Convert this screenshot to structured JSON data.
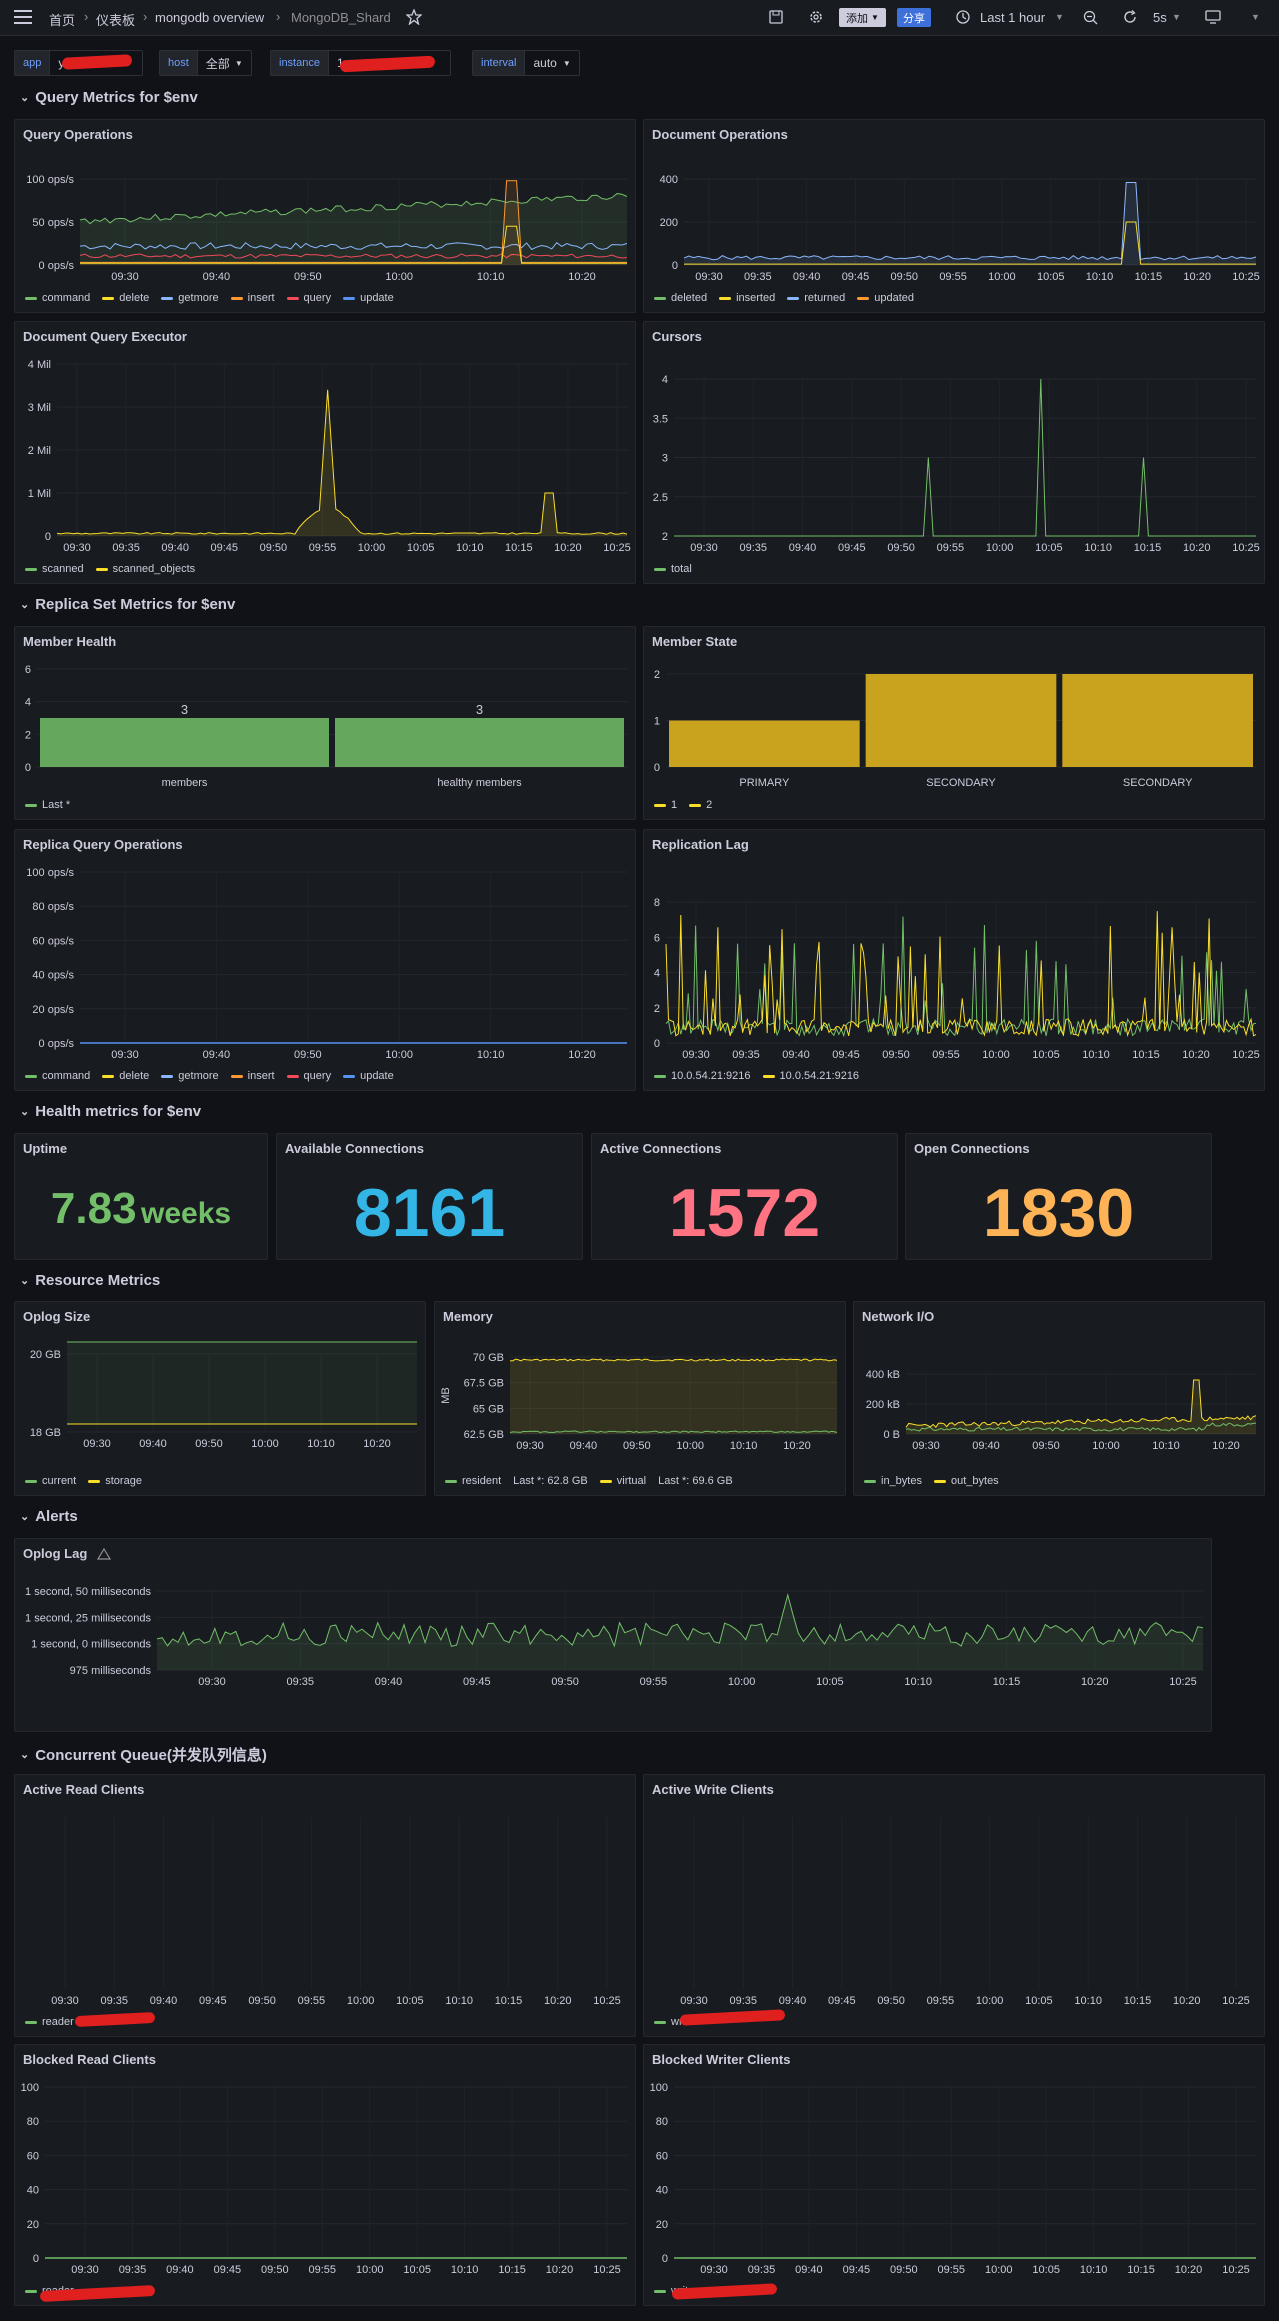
{
  "topbar": {
    "breadcrumbs": [
      "首页",
      "仪表板",
      "mongodb overview",
      "MongoDB_Shard"
    ],
    "add": "添加",
    "share": "分享",
    "time_range": "Last 1 hour",
    "refresh": "5s"
  },
  "variables": [
    {
      "label": "app",
      "value": "y"
    },
    {
      "label": "host",
      "value": "全部"
    },
    {
      "label": "instance",
      "value": "1                16"
    },
    {
      "label": "interval",
      "value": "auto"
    }
  ],
  "rows": {
    "query": "Query Metrics for $env",
    "replica": "Replica Set Metrics for $env",
    "health": "Health metrics for $env",
    "resource": "Resource Metrics",
    "alerts": "Alerts",
    "queue": "Concurrent Queue(并发队列信息)"
  },
  "panels": {
    "query_ops": {
      "title": "Query Operations",
      "yticks": [
        "100 ops/s",
        "50 ops/s",
        "0 ops/s"
      ],
      "xticks": [
        "09:30",
        "09:40",
        "09:50",
        "10:00",
        "10:10",
        "10:20"
      ],
      "legend": [
        "command",
        "delete",
        "getmore",
        "insert",
        "query",
        "update"
      ]
    },
    "doc_ops": {
      "title": "Document Operations",
      "yticks": [
        "400",
        "200",
        "0"
      ],
      "xticks": [
        "09:30",
        "09:35",
        "09:40",
        "09:45",
        "09:50",
        "09:55",
        "10:00",
        "10:05",
        "10:10",
        "10:15",
        "10:20",
        "10:25"
      ],
      "legend": [
        "deleted",
        "inserted",
        "returned",
        "updated"
      ]
    },
    "doc_exec": {
      "title": "Document Query Executor",
      "yticks": [
        "4 Mil",
        "3 Mil",
        "2 Mil",
        "1 Mil",
        "0"
      ],
      "xticks": [
        "09:30",
        "09:35",
        "09:40",
        "09:45",
        "09:50",
        "09:55",
        "10:00",
        "10:05",
        "10:10",
        "10:15",
        "10:20",
        "10:25"
      ],
      "legend": [
        "scanned",
        "scanned_objects"
      ]
    },
    "cursors": {
      "title": "Cursors",
      "yticks": [
        "4",
        "3.5",
        "3",
        "2.5",
        "2"
      ],
      "xticks": [
        "09:30",
        "09:35",
        "09:40",
        "09:45",
        "09:50",
        "09:55",
        "10:00",
        "10:05",
        "10:10",
        "10:15",
        "10:20",
        "10:25"
      ],
      "legend": [
        "total"
      ]
    },
    "member_health": {
      "title": "Member Health",
      "yticks": [
        "6",
        "4",
        "2",
        "0"
      ],
      "legend": [
        "Last *"
      ]
    },
    "member_state": {
      "title": "Member State",
      "yticks": [
        "2",
        "1",
        "0"
      ],
      "legend": [
        "1",
        "2"
      ]
    },
    "replica_ops": {
      "title": "Replica Query Operations",
      "yticks": [
        "100 ops/s",
        "80 ops/s",
        "60 ops/s",
        "40 ops/s",
        "20 ops/s",
        "0 ops/s"
      ],
      "xticks": [
        "09:30",
        "09:40",
        "09:50",
        "10:00",
        "10:10",
        "10:20"
      ],
      "legend": [
        "command",
        "delete",
        "getmore",
        "insert",
        "query",
        "update"
      ]
    },
    "repl_lag": {
      "title": "Replication Lag",
      "yticks": [
        "8",
        "6",
        "4",
        "2",
        "0"
      ],
      "xticks": [
        "09:30",
        "09:35",
        "09:40",
        "09:45",
        "09:50",
        "09:55",
        "10:00",
        "10:05",
        "10:10",
        "10:15",
        "10:20",
        "10:25"
      ],
      "legend": [
        "10.0.54.21:9216",
        "10.0.54.21:9216"
      ]
    },
    "uptime": {
      "title": "Uptime",
      "value": "7.83",
      "unit": "weeks"
    },
    "avail_conn": {
      "title": "Available Connections",
      "value": "8161"
    },
    "active_conn": {
      "title": "Active Connections",
      "value": "1572"
    },
    "open_conn": {
      "title": "Open Connections",
      "value": "1830"
    },
    "oplog_size": {
      "title": "Oplog Size",
      "yticks": [
        "20 GB",
        "18 GB"
      ],
      "xticks": [
        "09:30",
        "09:40",
        "09:50",
        "10:00",
        "10:10",
        "10:20"
      ],
      "legend": [
        "current",
        "storage"
      ]
    },
    "memory": {
      "title": "Memory",
      "ylabel": "MB",
      "yticks": [
        "70 GB",
        "67.5 GB",
        "65 GB",
        "62.5 GB"
      ],
      "xticks": [
        "09:30",
        "09:40",
        "09:50",
        "10:00",
        "10:10",
        "10:20"
      ],
      "legend": [
        "resident",
        "Last *: 62.8 GB",
        "virtual",
        "Last *: 69.6 GB"
      ]
    },
    "network": {
      "title": "Network I/O",
      "yticks": [
        "400 kB",
        "200 kB",
        "0 B"
      ],
      "xticks": [
        "09:30",
        "09:40",
        "09:50",
        "10:00",
        "10:10",
        "10:20"
      ],
      "legend": [
        "in_bytes",
        "out_bytes"
      ]
    },
    "oplog_lag": {
      "title": "Oplog Lag",
      "yticks": [
        "1 second, 50 milliseconds",
        "1 second, 25 milliseconds",
        "1 second, 0 milliseconds",
        "975 milliseconds"
      ],
      "xticks": [
        "09:30",
        "09:35",
        "09:40",
        "09:45",
        "09:50",
        "09:55",
        "10:00",
        "10:05",
        "10:10",
        "10:15",
        "10:20",
        "10:25"
      ]
    },
    "active_read": {
      "title": "Active Read Clients",
      "xticks": [
        "09:30",
        "09:35",
        "09:40",
        "09:45",
        "09:50",
        "09:55",
        "10:00",
        "10:05",
        "10:10",
        "10:15",
        "10:20",
        "10:25"
      ],
      "legend": [
        "reader"
      ]
    },
    "active_write": {
      "title": "Active Write Clients",
      "xticks": [
        "09:30",
        "09:35",
        "09:40",
        "09:45",
        "09:50",
        "09:55",
        "10:00",
        "10:05",
        "10:10",
        "10:15",
        "10:20",
        "10:25"
      ],
      "legend": [
        "writer"
      ]
    },
    "blocked_read": {
      "title": "Blocked Read Clients",
      "yticks": [
        "100",
        "80",
        "60",
        "40",
        "20",
        "0"
      ],
      "xticks": [
        "09:30",
        "09:35",
        "09:40",
        "09:45",
        "09:50",
        "09:55",
        "10:00",
        "10:05",
        "10:10",
        "10:15",
        "10:20",
        "10:25"
      ],
      "legend": [
        "reader"
      ]
    },
    "blocked_write": {
      "title": "Blocked Writer Clients",
      "yticks": [
        "100",
        "80",
        "60",
        "40",
        "20",
        "0"
      ],
      "xticks": [
        "09:30",
        "09:35",
        "09:40",
        "09:45",
        "09:50",
        "09:55",
        "10:00",
        "10:05",
        "10:10",
        "10:15",
        "10:20",
        "10:25"
      ],
      "legend": [
        "writer"
      ]
    }
  },
  "chart_data": [
    {
      "type": "bar",
      "title": "Member Health",
      "categories": [
        "members",
        "healthy members"
      ],
      "values": [
        3,
        3
      ],
      "ylim": [
        0,
        6
      ],
      "data_labels": [
        "3",
        "3"
      ]
    },
    {
      "type": "bar",
      "title": "Member State",
      "categories": [
        "PRIMARY",
        "SECONDARY",
        "SECONDARY"
      ],
      "values": [
        1,
        2,
        2
      ],
      "ylim": [
        0,
        2
      ]
    },
    {
      "type": "line",
      "title": "Cursors",
      "x": [
        "09:30",
        "10:00",
        "10:10",
        "10:20",
        "10:25"
      ],
      "series": [
        {
          "name": "total",
          "values": [
            2,
            2,
            2,
            2,
            2
          ]
        }
      ],
      "spikes": [
        {
          "x": "10:00",
          "y": 3
        },
        {
          "x": "10:10",
          "y": 4
        },
        {
          "x": "10:20",
          "y": 3
        }
      ],
      "ylim": [
        2,
        4
      ]
    }
  ],
  "colors": {
    "green": "#73bf69",
    "yellow": "#fade2a",
    "blue": "#8ab8ff",
    "orange": "#ff9830",
    "red": "#f2495c",
    "blue2": "#5794f2",
    "cyan": "#33b5e5",
    "pink": "#ff7383",
    "peach": "#ffb357"
  }
}
